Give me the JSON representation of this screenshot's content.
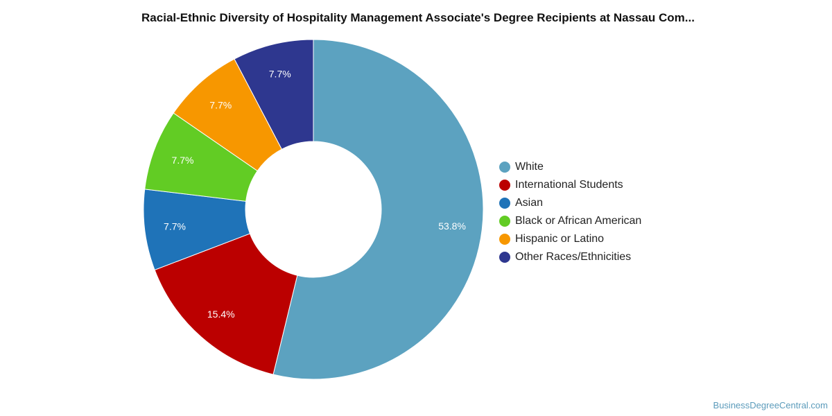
{
  "chart_data": {
    "type": "pie",
    "variant": "donut",
    "title": "Racial-Ethnic Diversity of Hospitality Management Associate's Degree Recipients at Nassau Com...",
    "categories": [
      "White",
      "International Students",
      "Asian",
      "Black or African American",
      "Hispanic or Latino",
      "Other Races/Ethnicities"
    ],
    "values": [
      53.8,
      15.4,
      7.7,
      7.7,
      7.7,
      7.7
    ],
    "data_labels": [
      "53.8%",
      "15.4%",
      "7.7%",
      "7.7%",
      "7.7%",
      "7.7%"
    ],
    "colors": [
      "#5ca2c0",
      "#bb0000",
      "#1f73b8",
      "#62cc24",
      "#f79700",
      "#2e378f"
    ],
    "legend_position": "right"
  },
  "watermark": "BusinessDegreeCentral.com"
}
